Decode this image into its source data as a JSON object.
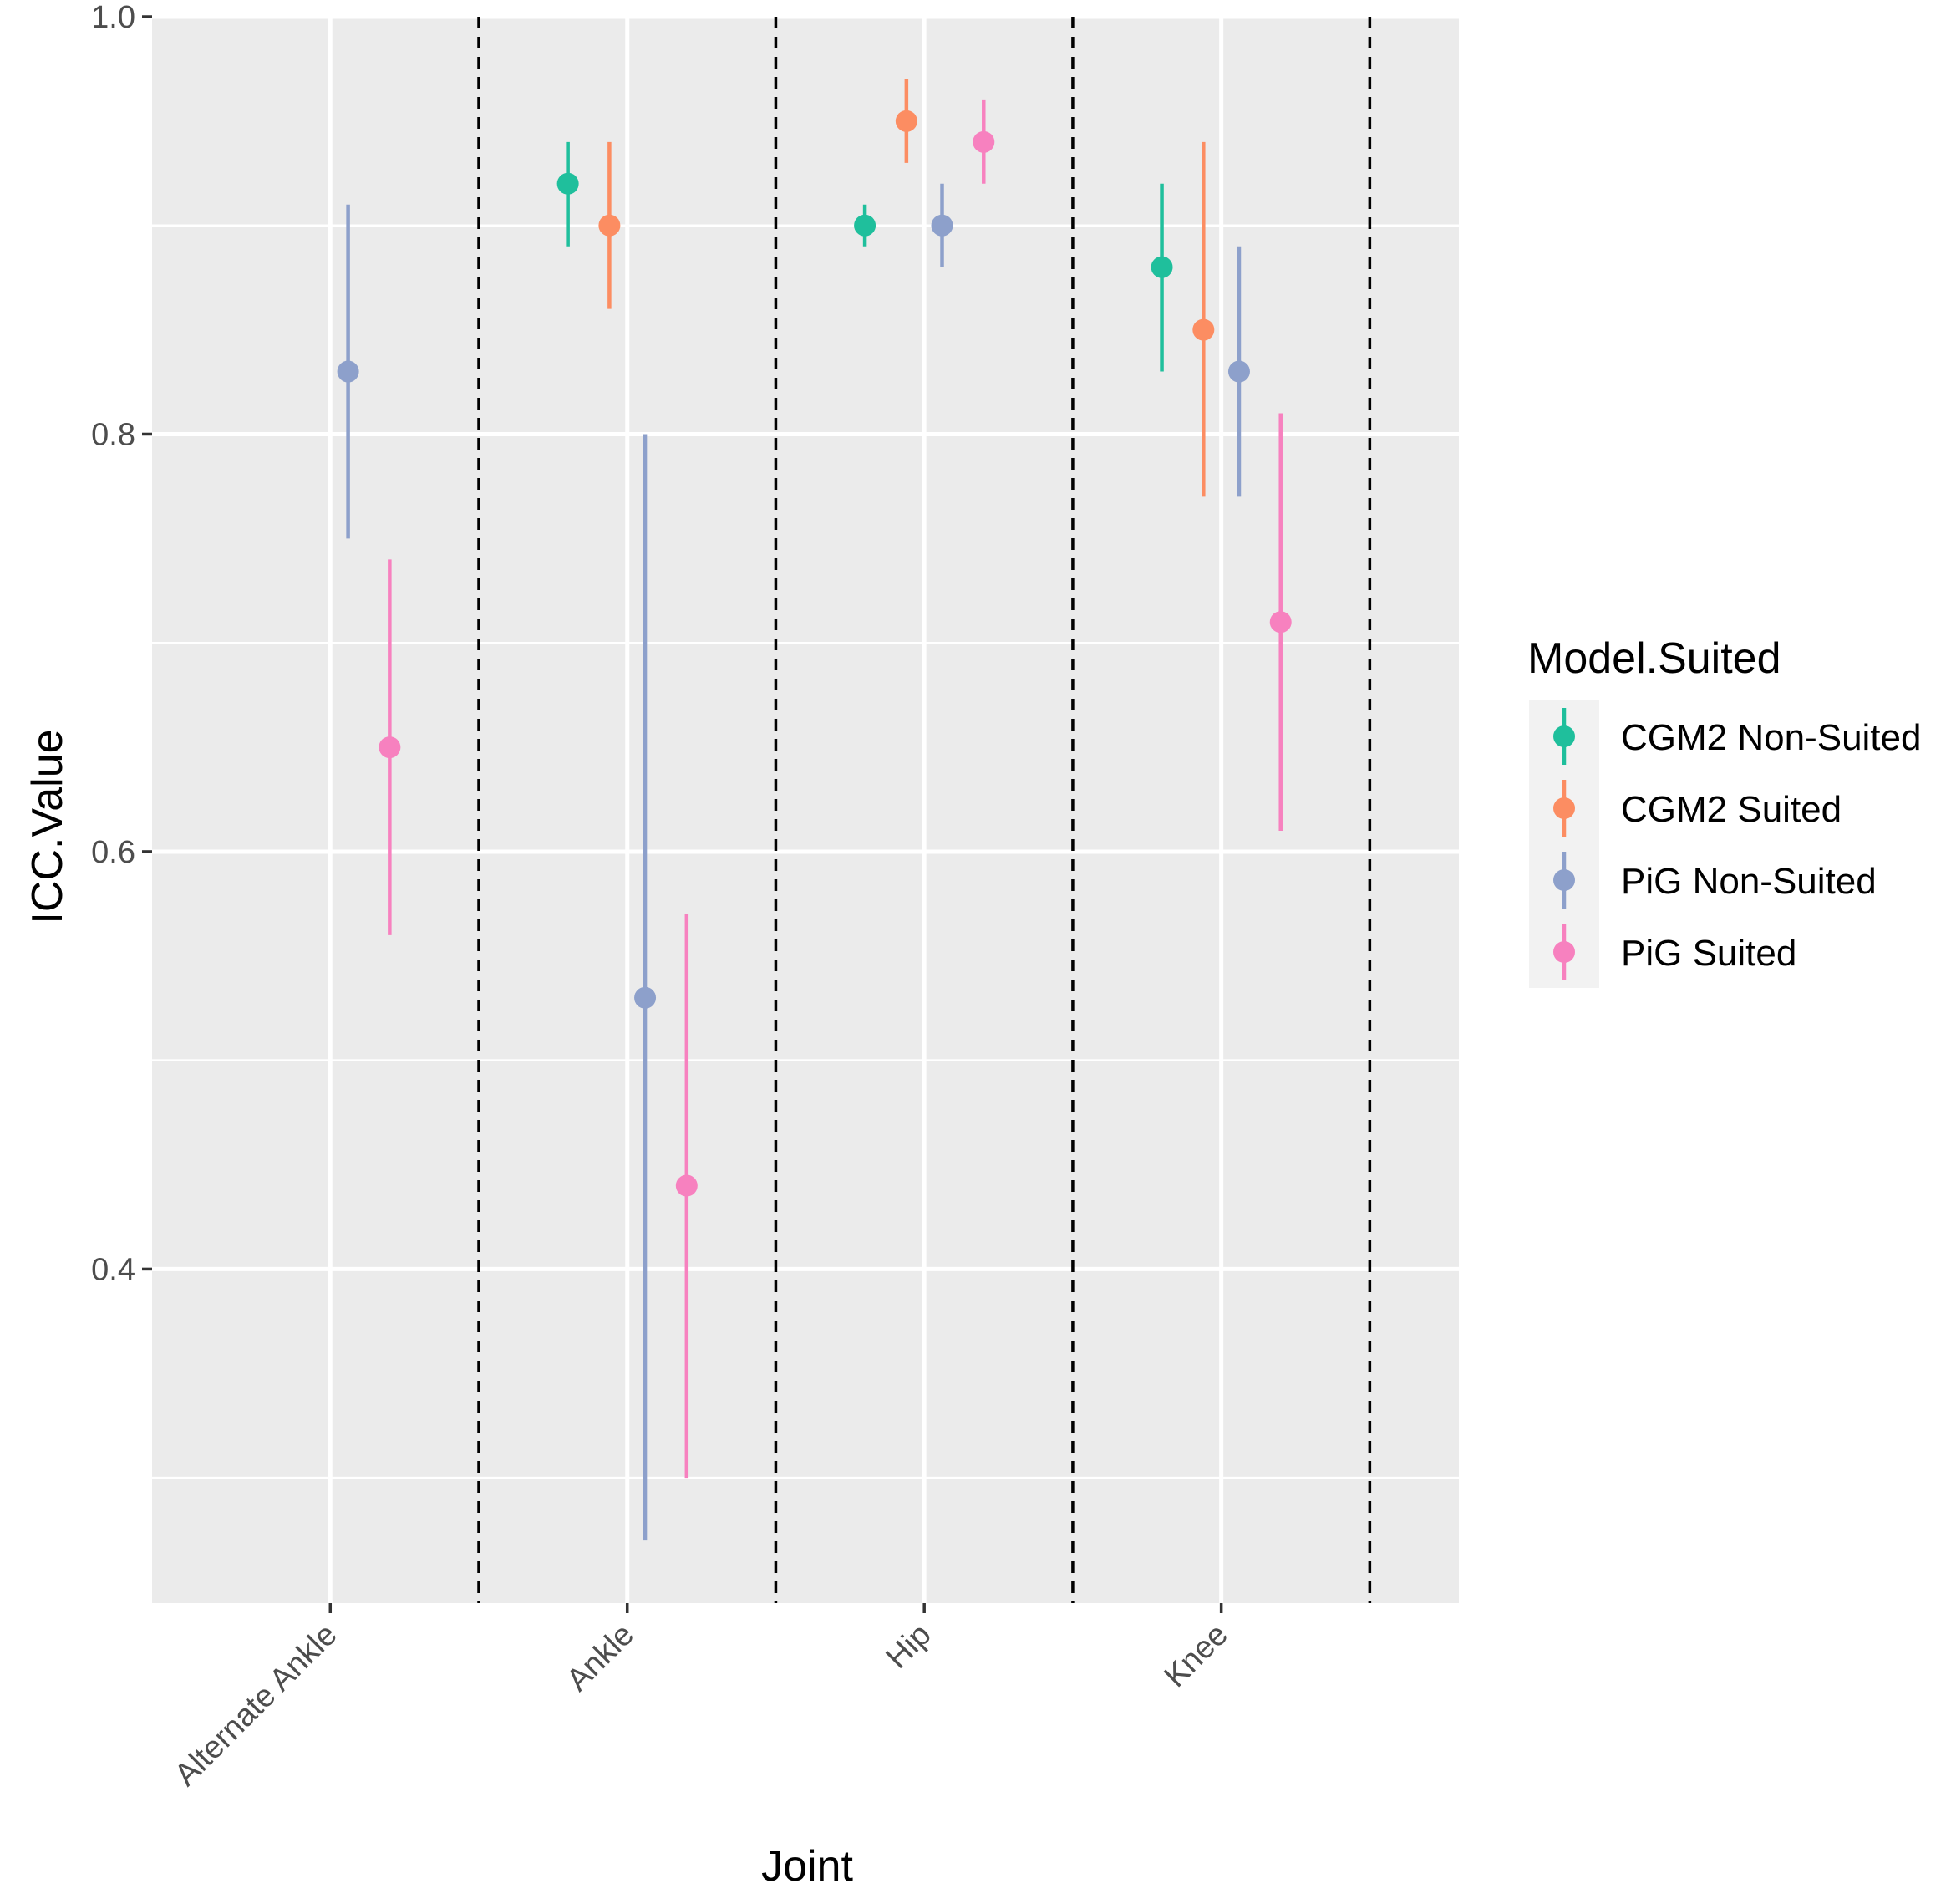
{
  "chart_data": {
    "type": "scatter",
    "subtype": "pointrange",
    "xlabel": "Joint",
    "ylabel": "ICC.Value",
    "categories": [
      "Alternate Ankle",
      "Ankle",
      "Hip",
      "Knee"
    ],
    "ylim": [
      0.24,
      1.0
    ],
    "yticks": [
      0.4,
      0.6,
      0.8,
      1.0
    ],
    "ytick_labels": [
      "0.4",
      "0.6",
      "0.8",
      "1.0"
    ],
    "grid": true,
    "separators": "dashed vertical lines between categories",
    "legend": {
      "title": "Model.Suited",
      "position": "right"
    },
    "series": [
      {
        "name": "CGM2 Non-Suited",
        "color": "#1fbf9c",
        "offset": -0.2,
        "points": [
          {
            "category": "Ankle",
            "value": 0.92,
            "lower": 0.89,
            "upper": 0.94
          },
          {
            "category": "Hip",
            "value": 0.9,
            "lower": 0.89,
            "upper": 0.91
          },
          {
            "category": "Knee",
            "value": 0.88,
            "lower": 0.83,
            "upper": 0.92
          }
        ]
      },
      {
        "name": "CGM2 Suited",
        "color": "#fc8d62",
        "offset": -0.06,
        "points": [
          {
            "category": "Ankle",
            "value": 0.9,
            "lower": 0.86,
            "upper": 0.94
          },
          {
            "category": "Hip",
            "value": 0.95,
            "lower": 0.93,
            "upper": 0.97
          },
          {
            "category": "Knee",
            "value": 0.85,
            "lower": 0.77,
            "upper": 0.94
          }
        ]
      },
      {
        "name": "PiG Non-Suited",
        "color": "#8da0cb",
        "offset": 0.06,
        "points": [
          {
            "category": "Alternate Ankle",
            "value": 0.83,
            "lower": 0.75,
            "upper": 0.91
          },
          {
            "category": "Ankle",
            "value": 0.53,
            "lower": 0.27,
            "upper": 0.8
          },
          {
            "category": "Hip",
            "value": 0.9,
            "lower": 0.88,
            "upper": 0.92
          },
          {
            "category": "Knee",
            "value": 0.83,
            "lower": 0.77,
            "upper": 0.89
          }
        ]
      },
      {
        "name": "PiG Suited",
        "color": "#f781bf",
        "offset": 0.2,
        "points": [
          {
            "category": "Alternate Ankle",
            "value": 0.65,
            "lower": 0.56,
            "upper": 0.74
          },
          {
            "category": "Ankle",
            "value": 0.44,
            "lower": 0.3,
            "upper": 0.57
          },
          {
            "category": "Hip",
            "value": 0.94,
            "lower": 0.92,
            "upper": 0.96
          },
          {
            "category": "Knee",
            "value": 0.71,
            "lower": 0.61,
            "upper": 0.81
          }
        ]
      }
    ]
  }
}
